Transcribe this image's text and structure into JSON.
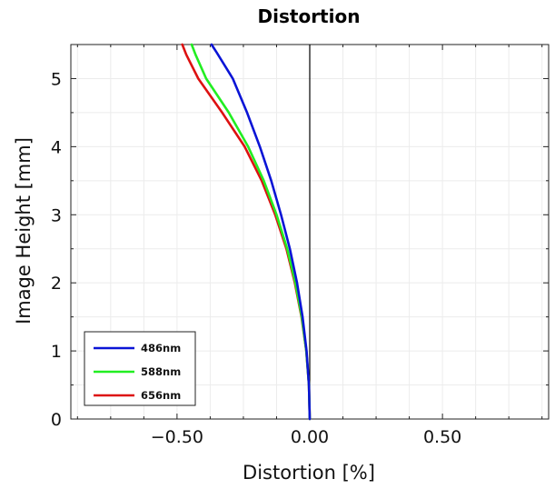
{
  "chart_data": {
    "type": "line",
    "title": "Distortion",
    "xlabel": "Distortion [%]",
    "ylabel": "Image Height [mm]",
    "xlim": [
      -0.9,
      0.9
    ],
    "ylim": [
      0,
      5.5
    ],
    "xticks": [
      -0.5,
      0.0,
      0.5
    ],
    "xtick_labels": [
      "−0.50",
      "0.00",
      "0.50"
    ],
    "yticks": [
      0,
      1,
      2,
      3,
      4,
      5
    ],
    "ytick_labels": [
      "0",
      "1",
      "2",
      "3",
      "4",
      "5"
    ],
    "grid": true,
    "legend_position": "bottom-left",
    "series": [
      {
        "name": "486nm",
        "color": "#0a14d6",
        "x": [
          0.0,
          -0.003,
          -0.012,
          -0.027,
          -0.048,
          -0.075,
          -0.108,
          -0.145,
          -0.188,
          -0.236,
          -0.29,
          -0.35,
          -0.37
        ],
        "y": [
          0.0,
          0.5,
          1.0,
          1.5,
          2.0,
          2.5,
          3.0,
          3.5,
          4.0,
          4.5,
          5.0,
          5.38,
          5.5
        ]
      },
      {
        "name": "588nm",
        "color": "#22ee22",
        "x": [
          0.0,
          -0.003,
          -0.013,
          -0.03,
          -0.054,
          -0.085,
          -0.125,
          -0.173,
          -0.232,
          -0.305,
          -0.39,
          -0.43,
          -0.445
        ],
        "y": [
          0.0,
          0.5,
          1.0,
          1.5,
          2.0,
          2.5,
          3.0,
          3.5,
          4.0,
          4.5,
          5.0,
          5.35,
          5.5
        ]
      },
      {
        "name": "656nm",
        "color": "#dd1111",
        "x": [
          0.0,
          -0.003,
          -0.013,
          -0.031,
          -0.056,
          -0.088,
          -0.13,
          -0.181,
          -0.245,
          -0.33,
          -0.42,
          -0.465,
          -0.48
        ],
        "y": [
          0.0,
          0.5,
          1.0,
          1.5,
          2.0,
          2.5,
          3.0,
          3.5,
          4.0,
          4.5,
          5.0,
          5.35,
          5.5
        ]
      }
    ]
  }
}
